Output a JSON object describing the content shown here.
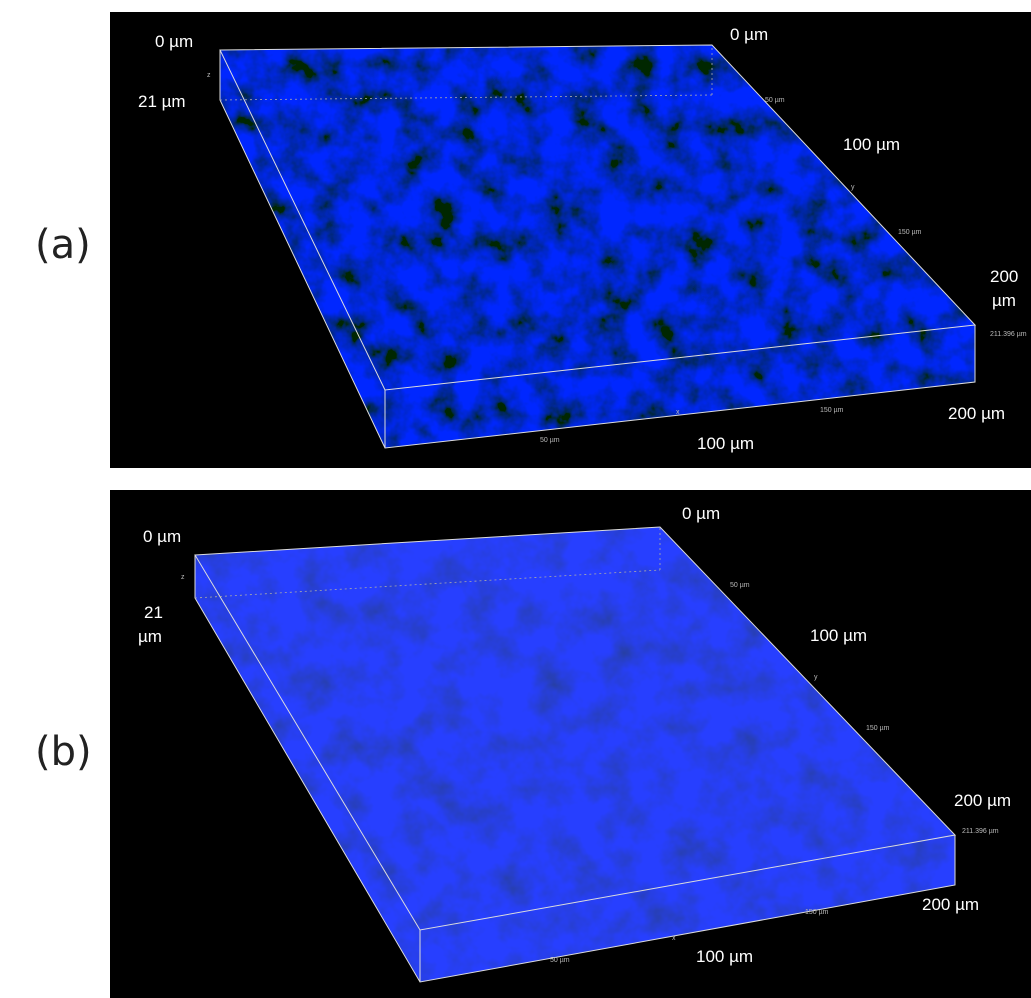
{
  "panels": [
    {
      "label": "(a)",
      "annotations": [
        "0 µm",
        "0 µm",
        "100 µm",
        "200 µm",
        "100 µm"
      ],
      "depth_label": [
        "21 µm"
      ],
      "corner_label": [
        "200",
        "µm"
      ],
      "axis_marks": [
        "z",
        "50 µm",
        "y",
        "150 µm",
        "211.396 µm",
        "150 µm",
        "x",
        "50 µm"
      ]
    },
    {
      "label": "(b)",
      "annotations": [
        "0 µm",
        "0 µm",
        "100 µm",
        "200 µm",
        "200 µm",
        "100 µm"
      ],
      "depth_label": [
        "21",
        "µm"
      ],
      "axis_marks": [
        "z",
        "50 µm",
        "y",
        "150 µm",
        "211.396 µm",
        "150 µm",
        "x",
        "50 µm"
      ]
    }
  ]
}
